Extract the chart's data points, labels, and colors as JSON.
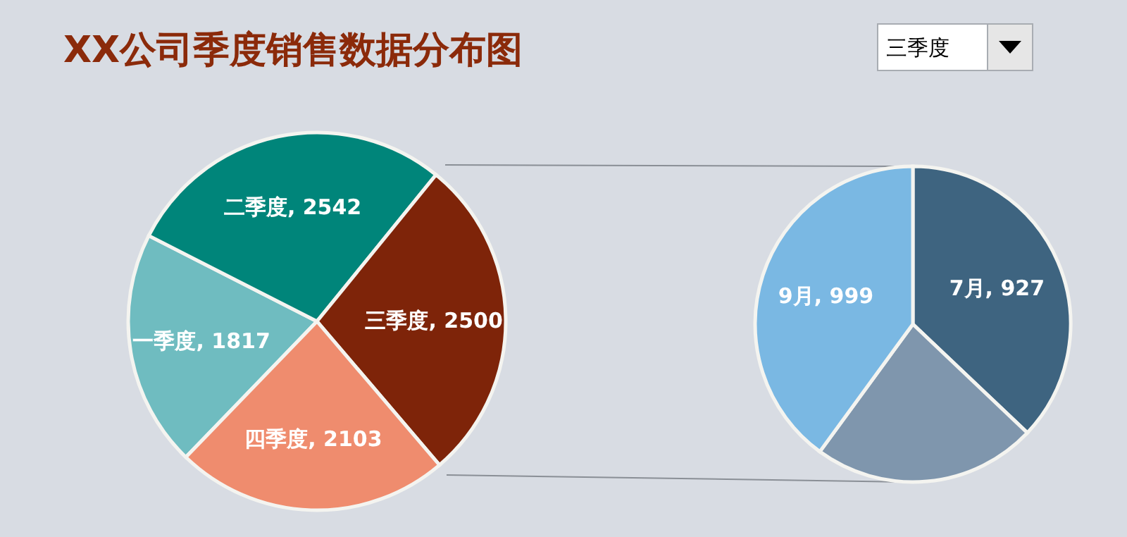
{
  "chart_data": [
    {
      "type": "pie",
      "title": "XX公司季度销售数据分布图",
      "annotations": [
        "三季度"
      ],
      "categories": [
        "一季度",
        "二季度",
        "三季度",
        "四季度"
      ],
      "values": [
        1817,
        2542,
        2500,
        2103
      ],
      "colors": [
        "#6fbcc0",
        "#00857a",
        "#7e2409",
        "#ef8c6e"
      ],
      "value_labels": [
        ", 1817",
        ", 2542",
        ", 2500",
        ", 2103"
      ]
    },
    {
      "type": "pie",
      "categories": [
        "7月",
        null,
        "9月"
      ],
      "values": [
        927,
        574,
        999
      ],
      "colors": [
        "#3e6480",
        "#7f96ad",
        "#7ab8e3"
      ],
      "value_labels": [
        ", 927",
        null,
        ", 999"
      ]
    }
  ]
}
